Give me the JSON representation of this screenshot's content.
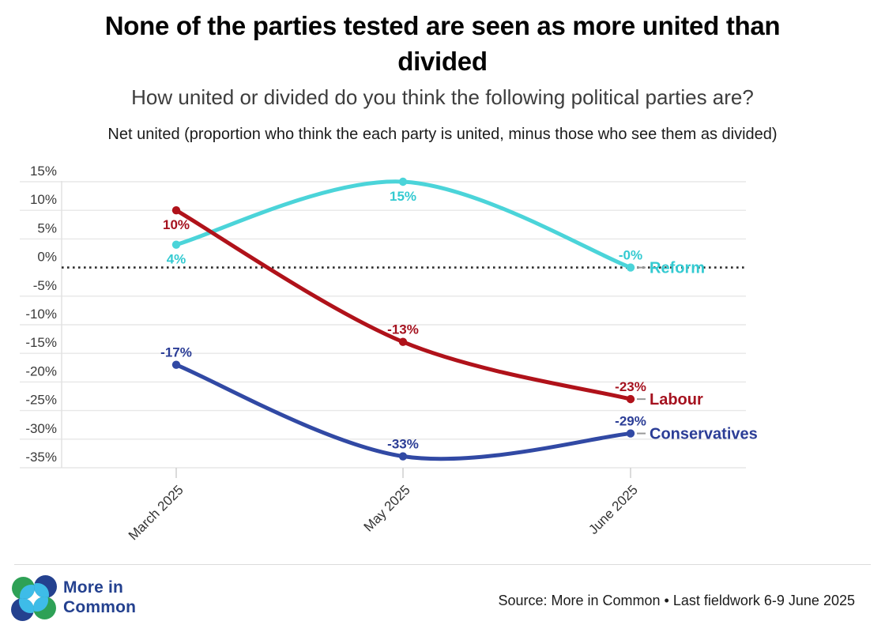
{
  "header": {
    "title_lines": [
      "None of the parties tested are seen as more united than",
      "divided"
    ],
    "subtitle": "How united or divided do you think the following political parties are?",
    "note": "Net united (proportion who think the each party is united, minus those who see them as divided)"
  },
  "chart_data": {
    "type": "line",
    "x_categories": [
      "March 2025",
      "May 2025",
      "June 2025"
    ],
    "y_ticks": [
      15,
      10,
      5,
      0,
      -5,
      -10,
      -15,
      -20,
      -25,
      -30,
      -35
    ],
    "y_tick_suffix": "%",
    "ylim": [
      -35,
      15
    ],
    "grid": true,
    "zero_line_style": "dotted",
    "legend_position": "end-of-line",
    "series": [
      {
        "name": "Reform",
        "line_color": "#4BD4D9",
        "label_color": "#33CAD1",
        "values": [
          4,
          15,
          0
        ],
        "point_labels": [
          "4%",
          "15%",
          "-0%"
        ],
        "label_side": [
          "below",
          "below",
          "above"
        ]
      },
      {
        "name": "Labour",
        "line_color": "#B0121A",
        "label_color": "#A5121F",
        "values": [
          10,
          -13,
          -23
        ],
        "point_labels": [
          "10%",
          "-13%",
          "-23%"
        ],
        "label_side": [
          "below",
          "above",
          "above"
        ]
      },
      {
        "name": "Conservatives",
        "line_color": "#3149A4",
        "label_color": "#2B3D96",
        "values": [
          -17,
          -33,
          -29
        ],
        "point_labels": [
          "-17%",
          "-33%",
          "-29%"
        ],
        "label_side": [
          "above",
          "above",
          "above"
        ]
      }
    ],
    "colors": {
      "gridline": "#e7e7e7",
      "zero_line": "#2d2d2d",
      "axis_tick": "#cfcfcf",
      "axis_line": "#e2e2e2",
      "label_dash": "#999999"
    }
  },
  "footer": {
    "logo_text_lines": [
      "More in",
      "Common"
    ],
    "logo_colors": {
      "green": "#2EA156",
      "light_blue": "#3EBCE8",
      "navy": "#24418F"
    },
    "source": "Source: More in Common • Last fieldwork 6-9 June 2025"
  }
}
